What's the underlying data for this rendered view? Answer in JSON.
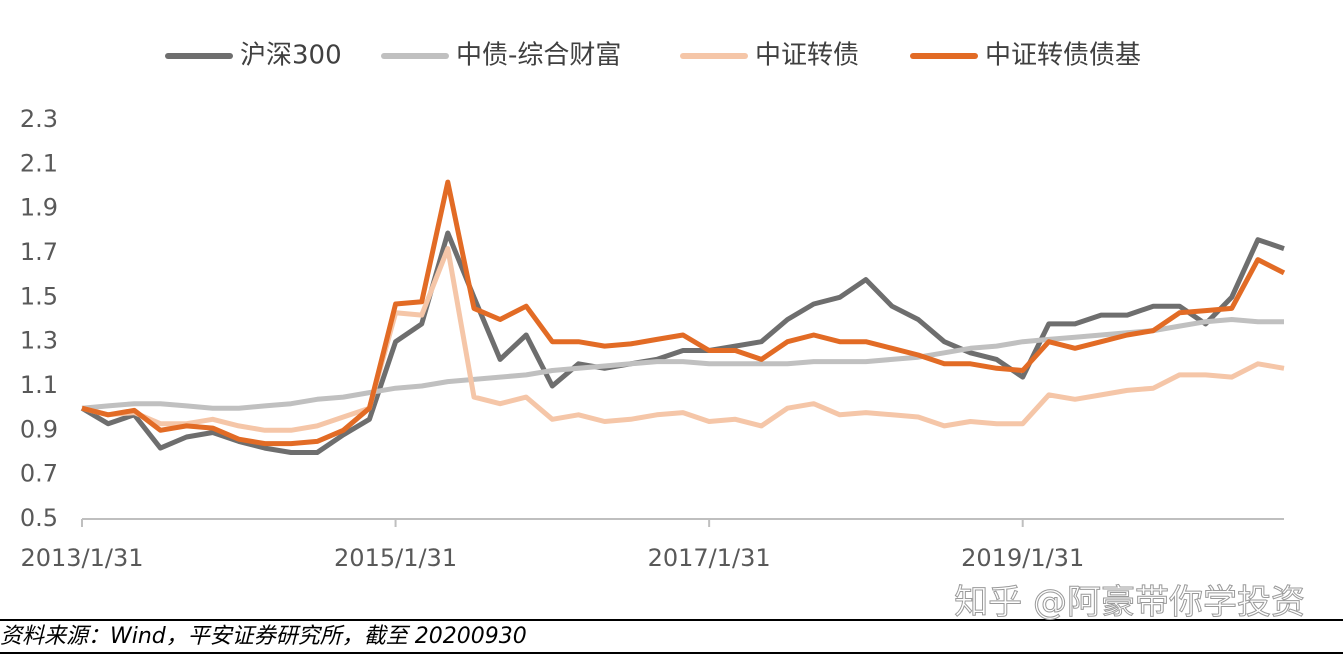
{
  "chart_data": {
    "type": "line",
    "categories": [
      "2013/1/31",
      null,
      null,
      null,
      null,
      null,
      null,
      null,
      null,
      null,
      null,
      null,
      "2015/1/31",
      null,
      null,
      null,
      null,
      null,
      null,
      null,
      null,
      null,
      null,
      null,
      "2017/1/31",
      null,
      null,
      null,
      null,
      null,
      null,
      null,
      null,
      null,
      null,
      null,
      "2019/1/31",
      null,
      null,
      null,
      null,
      null,
      null,
      null,
      null,
      null,
      null
    ],
    "series": [
      {
        "name": "沪深300",
        "color": "#6e6e6e",
        "values": [
          1.0,
          0.93,
          0.97,
          0.82,
          0.87,
          0.89,
          0.85,
          0.82,
          0.8,
          0.8,
          0.88,
          0.95,
          1.3,
          1.38,
          1.79,
          1.5,
          1.22,
          1.33,
          1.1,
          1.2,
          1.18,
          1.2,
          1.22,
          1.26,
          1.26,
          1.28,
          1.3,
          1.4,
          1.47,
          1.5,
          1.58,
          1.46,
          1.4,
          1.3,
          1.25,
          1.22,
          1.14,
          1.38,
          1.38,
          1.42,
          1.42,
          1.46,
          1.46,
          1.38,
          1.5,
          1.76,
          1.72
        ]
      },
      {
        "name": "中债-综合财富",
        "color": "#c0c0c0",
        "values": [
          1.0,
          1.01,
          1.02,
          1.02,
          1.01,
          1.0,
          1.0,
          1.01,
          1.02,
          1.04,
          1.05,
          1.07,
          1.09,
          1.1,
          1.12,
          1.13,
          1.14,
          1.15,
          1.17,
          1.18,
          1.19,
          1.2,
          1.21,
          1.21,
          1.2,
          1.2,
          1.2,
          1.2,
          1.21,
          1.21,
          1.21,
          1.22,
          1.23,
          1.25,
          1.27,
          1.28,
          1.3,
          1.31,
          1.32,
          1.33,
          1.34,
          1.35,
          1.37,
          1.39,
          1.4,
          1.39,
          1.39
        ]
      },
      {
        "name": "中证转债",
        "color": "#f5c6a8",
        "values": [
          1.0,
          0.97,
          0.98,
          0.93,
          0.93,
          0.95,
          0.92,
          0.9,
          0.9,
          0.92,
          0.96,
          1.0,
          1.43,
          1.42,
          1.72,
          1.05,
          1.02,
          1.05,
          0.95,
          0.97,
          0.94,
          0.95,
          0.97,
          0.98,
          0.94,
          0.95,
          0.92,
          1.0,
          1.02,
          0.97,
          0.98,
          0.97,
          0.96,
          0.92,
          0.94,
          0.93,
          0.93,
          1.06,
          1.04,
          1.06,
          1.08,
          1.09,
          1.15,
          1.15,
          1.14,
          1.2,
          1.18
        ]
      },
      {
        "name": "中证转债债基",
        "color": "#e26b25",
        "values": [
          1.0,
          0.97,
          0.99,
          0.9,
          0.92,
          0.91,
          0.86,
          0.84,
          0.84,
          0.85,
          0.9,
          1.0,
          1.47,
          1.48,
          2.02,
          1.45,
          1.4,
          1.46,
          1.3,
          1.3,
          1.28,
          1.29,
          1.31,
          1.33,
          1.26,
          1.26,
          1.22,
          1.3,
          1.33,
          1.3,
          1.3,
          1.27,
          1.24,
          1.2,
          1.2,
          1.18,
          1.17,
          1.3,
          1.27,
          1.3,
          1.33,
          1.35,
          1.43,
          1.44,
          1.45,
          1.67,
          1.61
        ]
      }
    ],
    "ylim": [
      0.5,
      2.3
    ],
    "yticks": [
      0.5,
      0.7,
      0.9,
      1.1,
      1.3,
      1.5,
      1.7,
      1.9,
      2.1,
      2.3
    ],
    "grid": false,
    "legend": "top",
    "source_note": "资料来源：Wind，平安证券研究所，截至 20200930",
    "watermark": "知乎 @阿豪带你学投资"
  }
}
